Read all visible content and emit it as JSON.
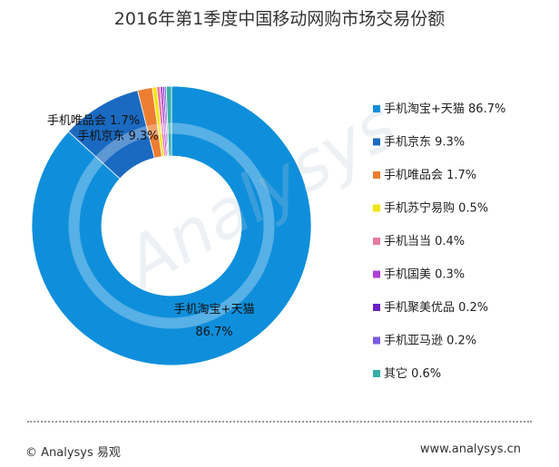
{
  "title": "2016年第1季度中国移动网购市场交易份额",
  "watermark": "Analysys",
  "footer": {
    "copyright": "© Analysys 易观",
    "website": "www.analysys.cn"
  },
  "chart_data": {
    "type": "pie",
    "variant": "donut",
    "title": "2016年第1季度中国移动网购市场交易份额",
    "legend_position": "right",
    "unit": "%",
    "series": [
      {
        "name": "手机淘宝+天猫",
        "value": 86.7,
        "color": "#0f8fdb"
      },
      {
        "name": "手机京东",
        "value": 9.3,
        "color": "#1b6ac1"
      },
      {
        "name": "手机唯品会",
        "value": 1.7,
        "color": "#ed7d31"
      },
      {
        "name": "手机苏宁易购",
        "value": 0.5,
        "color": "#f1e60c"
      },
      {
        "name": "手机当当",
        "value": 0.4,
        "color": "#e77aa3"
      },
      {
        "name": "手机国美",
        "value": 0.3,
        "color": "#b03fd6"
      },
      {
        "name": "手机聚美优品",
        "value": 0.2,
        "color": "#6a1fc4"
      },
      {
        "name": "手机亚马逊",
        "value": 0.2,
        "color": "#7a5be0"
      },
      {
        "name": "其它",
        "value": 0.6,
        "color": "#36b0a6"
      }
    ],
    "data_labels": [
      {
        "series": 0,
        "text": "手机淘宝+天猫",
        "value_text": "86.7%"
      },
      {
        "series": 2,
        "text": "手机唯品会 1.7%"
      },
      {
        "series": 1,
        "text": "手机京东 9.3%"
      }
    ]
  }
}
